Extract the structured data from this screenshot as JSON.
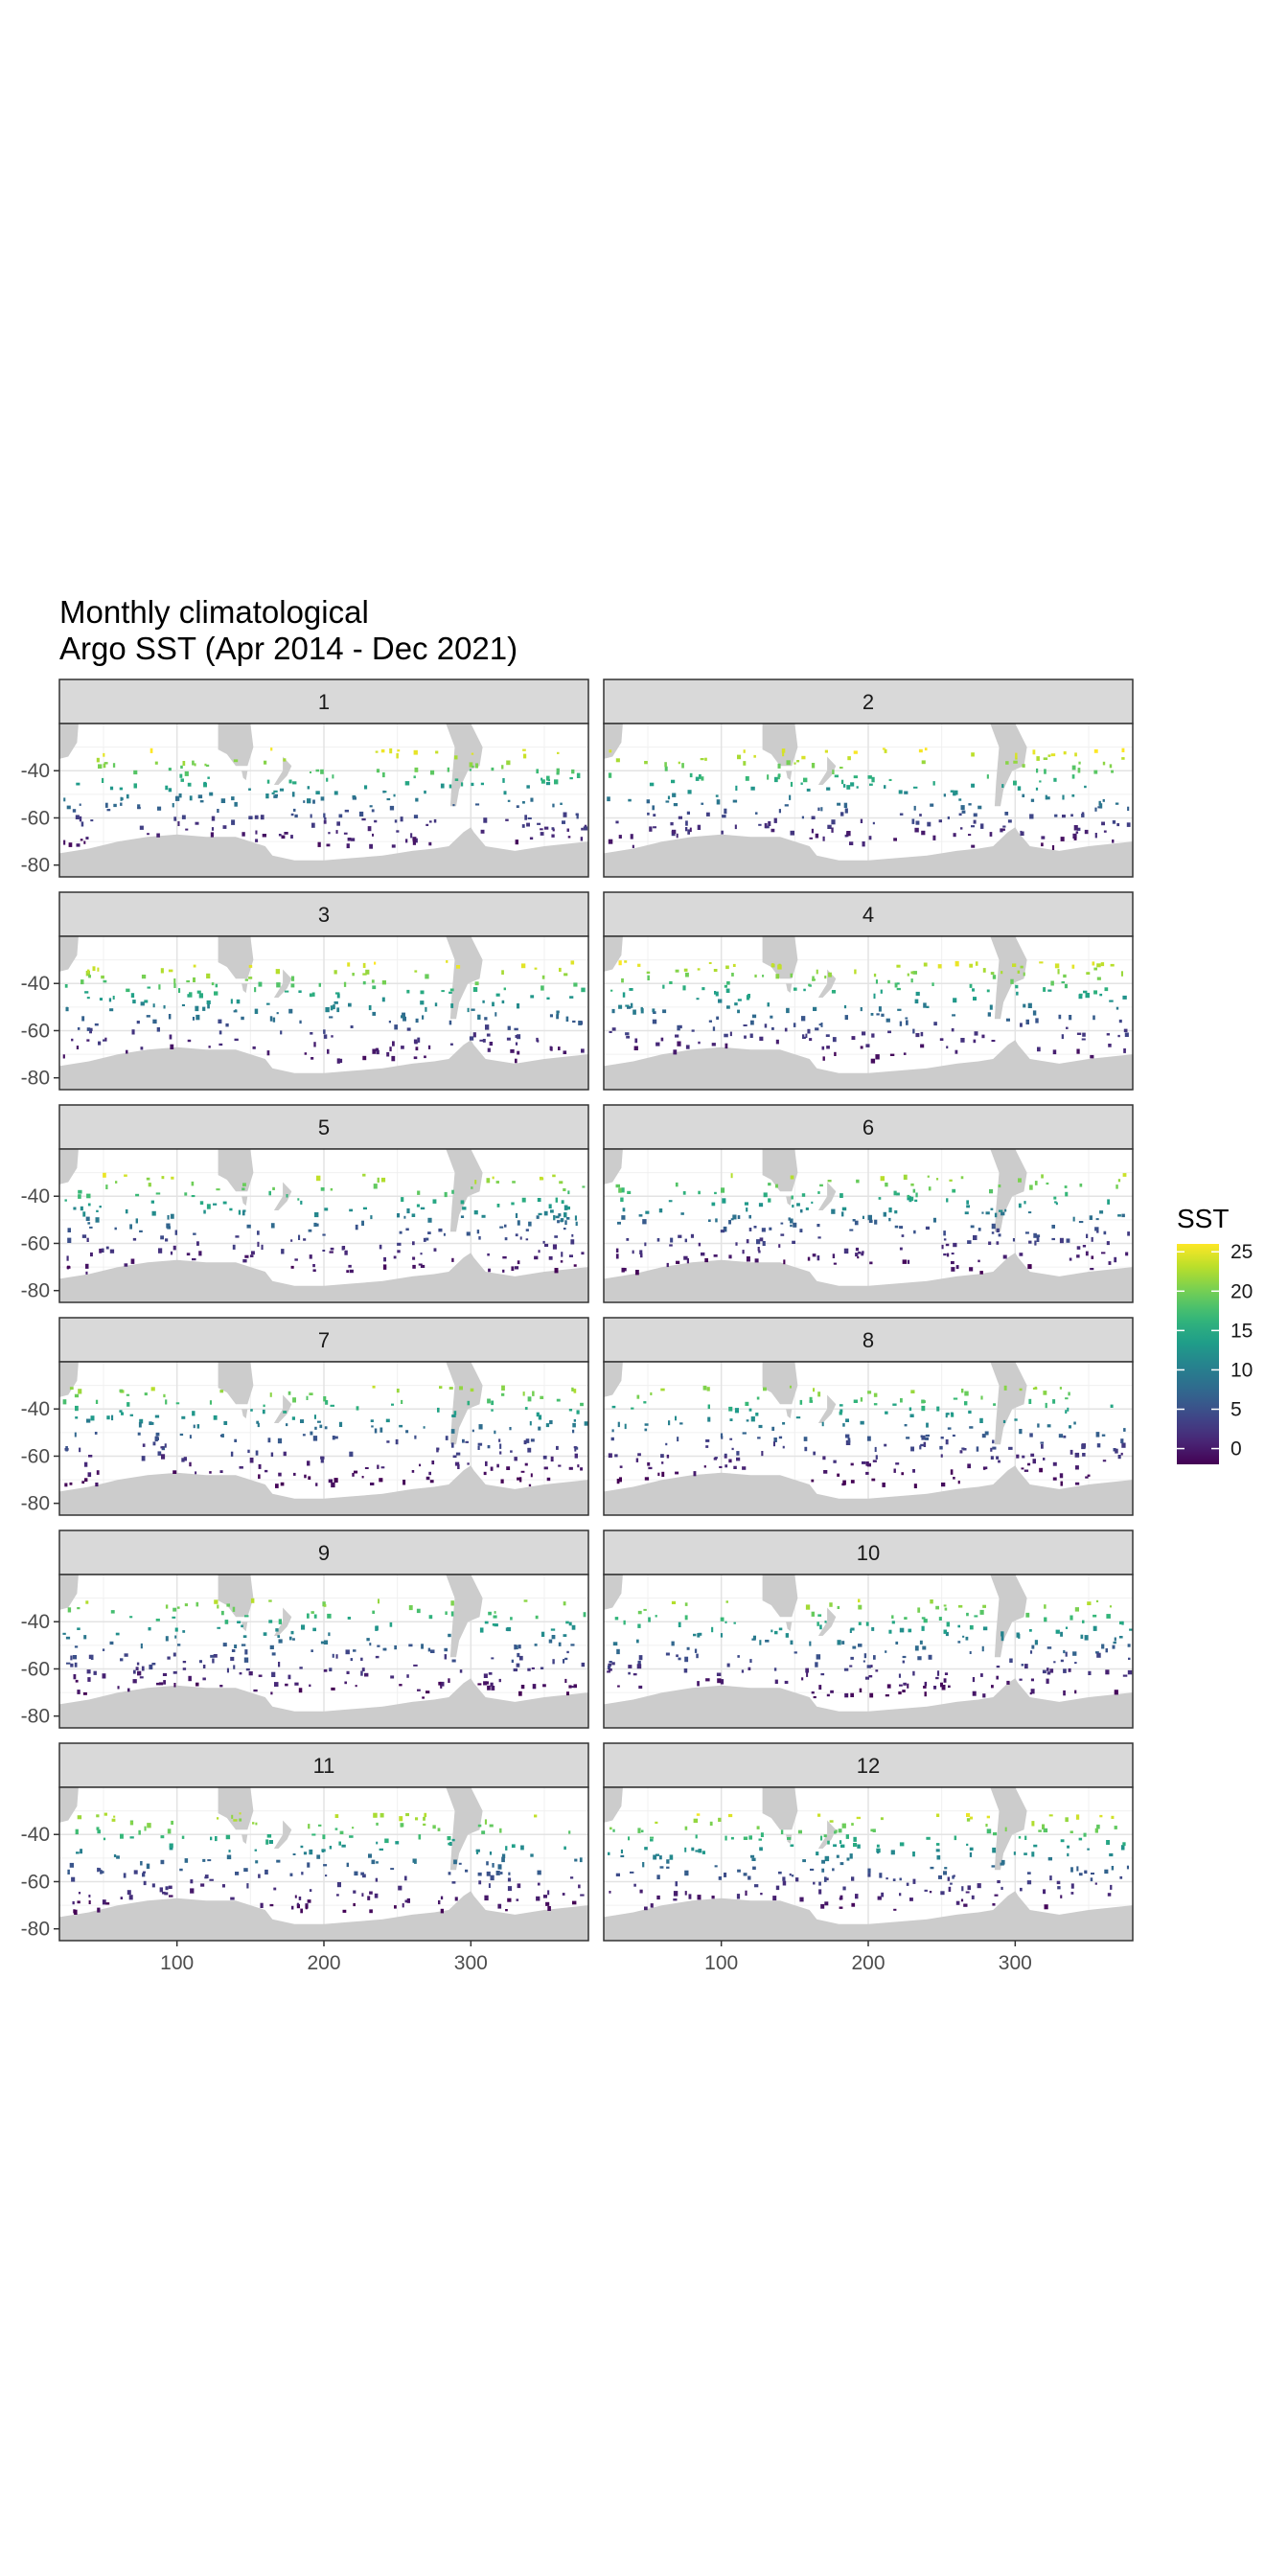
{
  "chart_data": {
    "type": "heatmap",
    "title_line1": "Monthly climatological",
    "title_line2": "Argo SST (Apr 2014 - Dec 2021)",
    "xlabel": "",
    "ylabel": "",
    "xlim": [
      20,
      380
    ],
    "ylim": [
      -85,
      -20
    ],
    "x_ticks": [
      100,
      200,
      300
    ],
    "y_ticks": [
      -40,
      -60,
      -80
    ],
    "grid": true,
    "facets": [
      "1",
      "2",
      "3",
      "4",
      "5",
      "6",
      "7",
      "8",
      "9",
      "10",
      "11",
      "12"
    ],
    "legend": {
      "title": "SST",
      "position": "right",
      "range": [
        -2,
        26
      ],
      "ticks": [
        0,
        5,
        10,
        15,
        20,
        25
      ],
      "colors": [
        "#440154",
        "#482878",
        "#3e4989",
        "#31688e",
        "#26828e",
        "#1f9e89",
        "#35b779",
        "#6ece58",
        "#b5de2b",
        "#fde725"
      ]
    },
    "land_color": "#cccccc",
    "panel_strip_color": "#d9d9d9",
    "sst_by_latitude_note_free": true,
    "series": [
      {
        "lat": -30,
        "sst": 24
      },
      {
        "lat": -35,
        "sst": 20
      },
      {
        "lat": -40,
        "sst": 16
      },
      {
        "lat": -45,
        "sst": 12
      },
      {
        "lat": -50,
        "sst": 8
      },
      {
        "lat": -55,
        "sst": 5
      },
      {
        "lat": -60,
        "sst": 2.5
      },
      {
        "lat": -65,
        "sst": 0.5
      },
      {
        "lat": -70,
        "sst": -1
      }
    ]
  }
}
